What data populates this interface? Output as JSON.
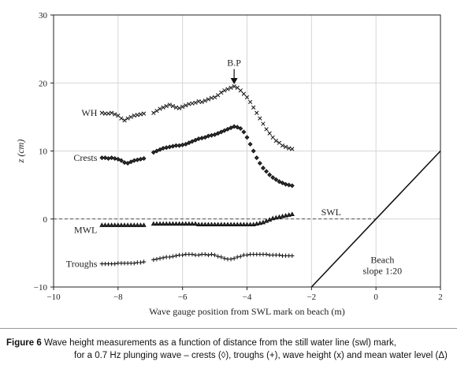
{
  "caption": {
    "bold": "Figure 6",
    "line1": "Wave height measurements as a function of distance from the still water line (swl) mark,",
    "line2": "for a 0.7 Hz plunging wave – crests (◊), troughs (+), wave height (x) and mean water level (Δ)"
  },
  "chart_data": {
    "type": "scatter",
    "xlabel": "Wave gauge position from SWL mark on beach (m)",
    "ylabel": "z (cm)",
    "xlim": [
      -10,
      2
    ],
    "ylim": [
      -10,
      30
    ],
    "xticks": [
      -10,
      -8,
      -6,
      -4,
      -2,
      0,
      2
    ],
    "yticks": [
      -10,
      0,
      10,
      20,
      30
    ],
    "grid": true,
    "annotations": {
      "breaking_point": "B.P",
      "swl": "SWL",
      "beach": [
        "Beach",
        "slope 1:20"
      ]
    },
    "beach_line": {
      "x": [
        -2,
        2
      ],
      "y": [
        -10,
        10
      ]
    },
    "swl_level": 0,
    "series": [
      {
        "name": "WH",
        "marker": "x",
        "x": [
          -8.5,
          -8.4,
          -8.3,
          -8.2,
          -8.1,
          -8.0,
          -7.9,
          -7.8,
          -7.7,
          -7.6,
          -7.5,
          -7.4,
          -7.3,
          -7.2,
          -6.9,
          -6.8,
          -6.7,
          -6.6,
          -6.5,
          -6.4,
          -6.3,
          -6.2,
          -6.1,
          -6.0,
          -5.9,
          -5.8,
          -5.7,
          -5.6,
          -5.5,
          -5.4,
          -5.3,
          -5.2,
          -5.1,
          -5.0,
          -4.9,
          -4.8,
          -4.7,
          -4.6,
          -4.5,
          -4.4,
          -4.3,
          -4.2,
          -4.1,
          -4.0,
          -3.9,
          -3.8,
          -3.7,
          -3.6,
          -3.5,
          -3.4,
          -3.3,
          -3.2,
          -3.1,
          -3.0,
          -2.9,
          -2.8,
          -2.7,
          -2.6
        ],
        "y": [
          15.6,
          15.5,
          15.5,
          15.6,
          15.4,
          15.2,
          14.8,
          14.5,
          14.8,
          15.0,
          15.2,
          15.3,
          15.4,
          15.5,
          15.6,
          15.9,
          16.2,
          16.4,
          16.6,
          16.8,
          16.6,
          16.4,
          16.3,
          16.5,
          16.7,
          16.9,
          17.0,
          17.1,
          17.3,
          17.2,
          17.4,
          17.6,
          17.8,
          17.9,
          18.2,
          18.6,
          18.9,
          19.1,
          19.3,
          19.5,
          19.3,
          18.9,
          18.4,
          17.9,
          17.2,
          16.4,
          15.6,
          14.8,
          14.0,
          13.2,
          12.6,
          12.0,
          11.5,
          11.2,
          10.8,
          10.6,
          10.4,
          10.3
        ]
      },
      {
        "name": "Crests",
        "marker": "diamond",
        "x": [
          -8.5,
          -8.4,
          -8.3,
          -8.2,
          -8.1,
          -8.0,
          -7.9,
          -7.8,
          -7.7,
          -7.6,
          -7.5,
          -7.4,
          -7.3,
          -7.2,
          -6.9,
          -6.8,
          -6.7,
          -6.6,
          -6.5,
          -6.4,
          -6.3,
          -6.2,
          -6.1,
          -6.0,
          -5.9,
          -5.8,
          -5.7,
          -5.6,
          -5.5,
          -5.4,
          -5.3,
          -5.2,
          -5.1,
          -5.0,
          -4.9,
          -4.8,
          -4.7,
          -4.6,
          -4.5,
          -4.4,
          -4.3,
          -4.2,
          -4.1,
          -4.0,
          -3.9,
          -3.8,
          -3.7,
          -3.6,
          -3.5,
          -3.4,
          -3.3,
          -3.2,
          -3.1,
          -3.0,
          -2.9,
          -2.8,
          -2.7,
          -2.6
        ],
        "y": [
          9.0,
          9.0,
          8.9,
          9.0,
          8.9,
          8.8,
          8.6,
          8.3,
          8.2,
          8.4,
          8.6,
          8.7,
          8.8,
          8.9,
          9.8,
          10.0,
          10.2,
          10.4,
          10.5,
          10.6,
          10.7,
          10.8,
          10.8,
          10.9,
          11.0,
          11.2,
          11.4,
          11.6,
          11.8,
          11.9,
          12.0,
          12.2,
          12.3,
          12.4,
          12.6,
          12.8,
          13.0,
          13.2,
          13.4,
          13.6,
          13.5,
          13.3,
          12.8,
          12.0,
          11.0,
          10.0,
          9.0,
          8.2,
          7.5,
          7.0,
          6.5,
          6.1,
          5.8,
          5.5,
          5.3,
          5.1,
          5.0,
          4.9
        ]
      },
      {
        "name": "MWL",
        "marker": "triangle",
        "x": [
          -8.5,
          -8.4,
          -8.3,
          -8.2,
          -8.1,
          -8.0,
          -7.9,
          -7.8,
          -7.7,
          -7.6,
          -7.5,
          -7.4,
          -7.3,
          -7.2,
          -6.9,
          -6.8,
          -6.7,
          -6.6,
          -6.5,
          -6.4,
          -6.3,
          -6.2,
          -6.1,
          -6.0,
          -5.9,
          -5.8,
          -5.7,
          -5.6,
          -5.5,
          -5.4,
          -5.3,
          -5.2,
          -5.1,
          -5.0,
          -4.9,
          -4.8,
          -4.7,
          -4.6,
          -4.5,
          -4.4,
          -4.3,
          -4.2,
          -4.1,
          -4.0,
          -3.9,
          -3.8,
          -3.7,
          -3.6,
          -3.5,
          -3.4,
          -3.3,
          -3.2,
          -3.1,
          -3.0,
          -2.9,
          -2.8,
          -2.7,
          -2.6
        ],
        "y": [
          -0.9,
          -0.9,
          -0.9,
          -0.9,
          -0.9,
          -0.9,
          -0.9,
          -0.9,
          -0.9,
          -0.9,
          -0.9,
          -0.9,
          -0.9,
          -0.9,
          -0.7,
          -0.7,
          -0.7,
          -0.7,
          -0.7,
          -0.7,
          -0.7,
          -0.7,
          -0.7,
          -0.7,
          -0.7,
          -0.7,
          -0.7,
          -0.7,
          -0.8,
          -0.8,
          -0.8,
          -0.8,
          -0.8,
          -0.8,
          -0.8,
          -0.8,
          -0.8,
          -0.8,
          -0.8,
          -0.8,
          -0.8,
          -0.8,
          -0.8,
          -0.8,
          -0.8,
          -0.8,
          -0.7,
          -0.6,
          -0.5,
          -0.3,
          -0.1,
          0.1,
          0.2,
          0.3,
          0.4,
          0.5,
          0.6,
          0.7
        ]
      },
      {
        "name": "Troughs",
        "marker": "plus",
        "x": [
          -8.5,
          -8.4,
          -8.3,
          -8.2,
          -8.1,
          -8.0,
          -7.9,
          -7.8,
          -7.7,
          -7.6,
          -7.5,
          -7.4,
          -7.3,
          -7.2,
          -6.9,
          -6.8,
          -6.7,
          -6.6,
          -6.5,
          -6.4,
          -6.3,
          -6.2,
          -6.1,
          -6.0,
          -5.9,
          -5.8,
          -5.7,
          -5.6,
          -5.5,
          -5.4,
          -5.3,
          -5.2,
          -5.1,
          -5.0,
          -4.9,
          -4.8,
          -4.7,
          -4.6,
          -4.5,
          -4.4,
          -4.3,
          -4.2,
          -4.1,
          -4.0,
          -3.9,
          -3.8,
          -3.7,
          -3.6,
          -3.5,
          -3.4,
          -3.3,
          -3.2,
          -3.1,
          -3.0,
          -2.9,
          -2.8,
          -2.7,
          -2.6
        ],
        "y": [
          -6.6,
          -6.6,
          -6.6,
          -6.6,
          -6.6,
          -6.5,
          -6.5,
          -6.5,
          -6.5,
          -6.5,
          -6.5,
          -6.4,
          -6.4,
          -6.3,
          -6.0,
          -5.9,
          -5.8,
          -5.7,
          -5.6,
          -5.6,
          -5.5,
          -5.4,
          -5.3,
          -5.3,
          -5.2,
          -5.2,
          -5.2,
          -5.3,
          -5.3,
          -5.2,
          -5.2,
          -5.3,
          -5.2,
          -5.3,
          -5.5,
          -5.6,
          -5.8,
          -5.9,
          -5.9,
          -5.8,
          -5.6,
          -5.5,
          -5.3,
          -5.3,
          -5.2,
          -5.2,
          -5.2,
          -5.2,
          -5.2,
          -5.2,
          -5.3,
          -5.3,
          -5.3,
          -5.3,
          -5.4,
          -5.4,
          -5.4,
          -5.4
        ]
      }
    ]
  }
}
